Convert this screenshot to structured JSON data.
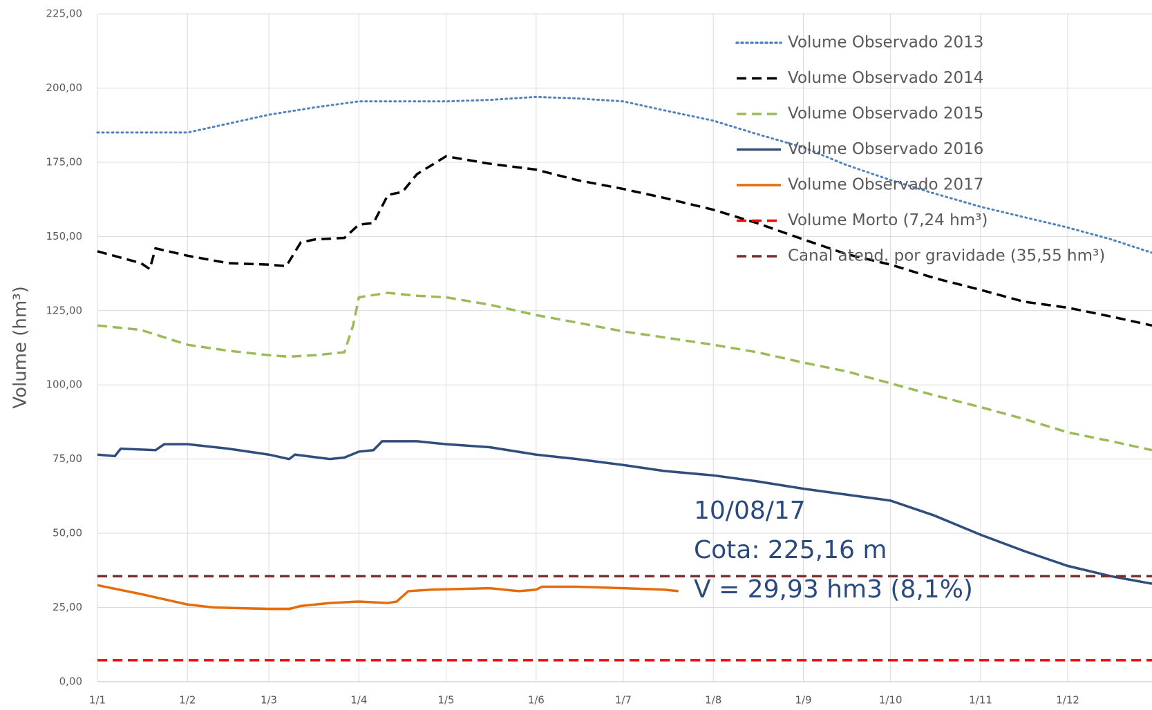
{
  "chart_data": {
    "type": "line",
    "ylabel": "Volume (hm³)",
    "xlim": [
      0,
      363
    ],
    "ylim": [
      0,
      225
    ],
    "xticks": [
      {
        "value": 0,
        "label": "1/1"
      },
      {
        "value": 31,
        "label": "1/2"
      },
      {
        "value": 59,
        "label": "1/3"
      },
      {
        "value": 90,
        "label": "1/4"
      },
      {
        "value": 120,
        "label": "1/5"
      },
      {
        "value": 151,
        "label": "1/6"
      },
      {
        "value": 181,
        "label": "1/7"
      },
      {
        "value": 212,
        "label": "1/8"
      },
      {
        "value": 243,
        "label": "1/9"
      },
      {
        "value": 273,
        "label": "1/10"
      },
      {
        "value": 304,
        "label": "1/11"
      },
      {
        "value": 334,
        "label": "1/12"
      }
    ],
    "yticks": [
      {
        "value": 0,
        "label": "0,00"
      },
      {
        "value": 25,
        "label": "25,00"
      },
      {
        "value": 50,
        "label": "50,00"
      },
      {
        "value": 75,
        "label": "75,00"
      },
      {
        "value": 100,
        "label": "100,00"
      },
      {
        "value": 125,
        "label": "125,00"
      },
      {
        "value": 150,
        "label": "150,00"
      },
      {
        "value": 175,
        "label": "175,00"
      },
      {
        "value": 200,
        "label": "200,00"
      },
      {
        "value": 225,
        "label": "225,00"
      }
    ],
    "grid": true,
    "legend": "upper right",
    "series": [
      {
        "name": "Volume Observado 2013",
        "color": "#4f81bd",
        "style": "dotted",
        "x": [
          0,
          15,
          31,
          45,
          59,
          75,
          90,
          105,
          120,
          135,
          151,
          165,
          181,
          195,
          212,
          227,
          243,
          258,
          273,
          288,
          304,
          319,
          334,
          349,
          363
        ],
        "values": [
          185,
          185,
          185,
          188,
          191,
          193.5,
          195.5,
          195.5,
          195.5,
          196,
          197,
          196.5,
          195.5,
          192.5,
          189,
          184.5,
          180,
          174,
          169,
          164.5,
          160,
          156.5,
          153,
          149,
          144.5
        ]
      },
      {
        "name": "Volume Observado 2014",
        "color": "#000000",
        "style": "dashed",
        "x": [
          0,
          15,
          18,
          20,
          31,
          45,
          59,
          65,
          70,
          75,
          85,
          90,
          95,
          100,
          105,
          110,
          120,
          135,
          151,
          165,
          181,
          195,
          212,
          227,
          243,
          258,
          273,
          288,
          304,
          319,
          334,
          349,
          363
        ],
        "values": [
          145,
          141,
          139,
          146,
          143.5,
          141,
          140.5,
          140,
          148,
          149,
          149.5,
          154,
          154.5,
          164,
          165,
          171,
          177,
          174.5,
          172.5,
          169,
          166,
          163,
          159,
          154.5,
          149,
          144,
          140.5,
          136,
          132,
          128,
          126,
          123,
          120
        ]
      },
      {
        "name": "Volume Observado 2015",
        "color": "#9bbb59",
        "style": "dashed",
        "x": [
          0,
          15,
          31,
          45,
          59,
          66,
          75,
          85,
          88,
          90,
          100,
          110,
          120,
          135,
          151,
          165,
          181,
          195,
          212,
          227,
          243,
          258,
          273,
          288,
          304,
          319,
          334,
          349,
          363
        ],
        "values": [
          120,
          118.5,
          113.5,
          111.5,
          110,
          109.5,
          110,
          111,
          120,
          129.5,
          131,
          130,
          129.5,
          127,
          123.5,
          121,
          118,
          116,
          113.5,
          111,
          107.5,
          104.5,
          100.5,
          96.5,
          92.5,
          88.5,
          84,
          81,
          78
        ]
      },
      {
        "name": "Volume Observado 2016",
        "color": "#2f4e7e",
        "style": "solid",
        "x": [
          0,
          6,
          8,
          20,
          23,
          31,
          45,
          59,
          66,
          68,
          80,
          85,
          90,
          95,
          98,
          110,
          120,
          135,
          151,
          165,
          181,
          195,
          212,
          227,
          243,
          258,
          273,
          288,
          304,
          319,
          334,
          349,
          363
        ],
        "values": [
          76.5,
          76,
          78.5,
          78,
          80,
          80,
          78.5,
          76.5,
          75,
          76.5,
          75,
          75.5,
          77.5,
          78,
          81,
          81,
          80,
          79,
          76.5,
          75,
          73,
          71,
          69.5,
          67.5,
          65,
          63,
          61,
          56,
          49.5,
          44,
          39,
          35.5,
          33
        ]
      },
      {
        "name": "Volume Observado 2017",
        "color": "#e46c0a",
        "style": "solid",
        "x": [
          0,
          15,
          31,
          40,
          59,
          66,
          70,
          80,
          90,
          100,
          103,
          107,
          115,
          135,
          145,
          151,
          153,
          165,
          181,
          195,
          200
        ],
        "values": [
          32.5,
          29.5,
          26,
          25,
          24.5,
          24.5,
          25.5,
          26.5,
          27,
          26.5,
          27,
          30.5,
          31,
          31.5,
          30.5,
          31,
          32,
          32,
          31.5,
          31,
          30.5
        ]
      },
      {
        "name": "Volume Morto (7,24 hm³)",
        "color": "#ff0000",
        "style": "dashed",
        "x": [
          0,
          363
        ],
        "values": [
          7.24,
          7.24
        ]
      },
      {
        "name": "Canal atend. por gravidade (35,55 hm³)",
        "color": "#7b2c2c",
        "style": "dashed",
        "x": [
          0,
          363
        ],
        "values": [
          35.55,
          35.55
        ]
      }
    ],
    "annotations": [
      "10/08/17",
      "Cota: 225,16 m",
      "V = 29,93 hm3 (8,1%)"
    ]
  }
}
